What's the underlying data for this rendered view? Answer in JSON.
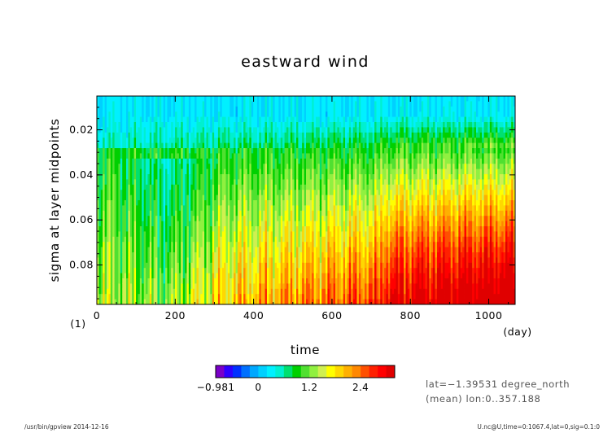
{
  "chart_data": {
    "type": "heatmap",
    "title": "eastward wind",
    "xlabel": "time",
    "xunit": "(day)",
    "ylabel": "sigma at layer midpoints",
    "yunit": "(1)",
    "xlim": [
      0,
      1067.4
    ],
    "ylim": [
      0.0975,
      0.005
    ],
    "y_inverted": true,
    "x_ticks": [
      0,
      200,
      400,
      600,
      800,
      1000
    ],
    "x_tick_labels": [
      "0",
      "200",
      "400",
      "600",
      "800",
      "1000"
    ],
    "y_ticks": [
      0.02,
      0.04,
      0.06,
      0.08
    ],
    "y_tick_labels": [
      "0.02",
      "0.04",
      "0.06",
      "0.08"
    ],
    "colorbar": {
      "min": -0.981,
      "max": 3.2,
      "levels": [
        -0.981,
        -0.8,
        -0.6,
        -0.4,
        -0.2,
        0,
        0.2,
        0.4,
        0.6,
        0.8,
        1.0,
        1.2,
        1.4,
        1.6,
        1.8,
        2.0,
        2.2,
        2.4,
        2.6,
        2.8,
        3.0,
        3.2
      ],
      "colors": [
        "#7a00c8",
        "#2e00ff",
        "#0030ff",
        "#0070ff",
        "#00a8ff",
        "#00d0ff",
        "#00f0ff",
        "#00f0d0",
        "#00e070",
        "#00d000",
        "#50e030",
        "#90f040",
        "#d0f050",
        "#ffff00",
        "#ffd800",
        "#ffb000",
        "#ff8800",
        "#ff5000",
        "#ff2000",
        "#ff0000",
        "#e00000"
      ],
      "tick_values": [
        -0.981,
        0,
        1.2,
        2.4
      ],
      "tick_labels": [
        "−0.981",
        "0",
        "1.2",
        "2.4"
      ]
    },
    "grid": false,
    "legend": "colorbar-bottom"
  },
  "info": {
    "line1": "lat=−1.39531 degree_north",
    "line2": "(mean) lon:0..357.188"
  },
  "footer": {
    "left": "/usr/bin/gpview  2014-12-16",
    "right": "U.nc@U,time=0:1067.4,lat=0,sig=0.1:0"
  }
}
